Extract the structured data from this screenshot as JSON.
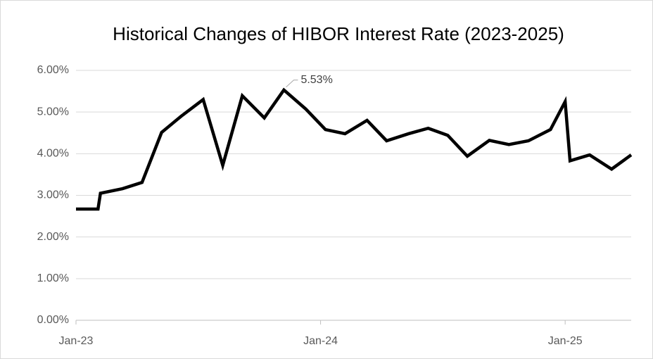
{
  "chart_data": {
    "type": "line",
    "title": "Historical Changes of HIBOR Interest Rate (2023-2025)",
    "x": [
      2023.0,
      2023.09,
      2023.1,
      2023.19,
      2023.27,
      2023.35,
      2023.43,
      2023.52,
      2023.6,
      2023.68,
      2023.77,
      2023.85,
      2023.94,
      2024.02,
      2024.1,
      2024.19,
      2024.27,
      2024.36,
      2024.44,
      2024.52,
      2024.6,
      2024.69,
      2024.77,
      2024.85,
      2024.94,
      2025.0,
      2025.02,
      2025.1,
      2025.19,
      2025.27
    ],
    "series": [
      {
        "color": "#000000",
        "values": [
          2.67,
          2.67,
          3.05,
          3.16,
          3.31,
          4.51,
          4.9,
          5.3,
          3.72,
          5.39,
          4.86,
          5.53,
          5.07,
          4.58,
          4.48,
          4.8,
          4.31,
          4.48,
          4.61,
          4.44,
          3.94,
          4.32,
          4.22,
          4.31,
          4.58,
          5.25,
          3.83,
          3.97,
          3.63,
          3.97
        ],
        "value_labels": [
          null,
          null,
          null,
          null,
          null,
          null,
          null,
          null,
          null,
          null,
          null,
          "5.53%",
          null,
          null,
          null,
          null,
          null,
          null,
          null,
          null,
          null,
          null,
          null,
          null,
          null,
          null,
          null,
          null,
          null,
          null
        ]
      }
    ],
    "xlim": [
      2023.0,
      2025.27
    ],
    "xticks": [
      {
        "value": 2023,
        "label": "Jan-23"
      },
      {
        "value": 2024,
        "label": "Jan-24"
      },
      {
        "value": 2025,
        "label": "Jan-25"
      }
    ],
    "ylim": [
      0,
      6
    ],
    "yticks": [
      {
        "value": 0,
        "label": "0.00%"
      },
      {
        "value": 1,
        "label": "1.00%"
      },
      {
        "value": 2,
        "label": "2.00%"
      },
      {
        "value": 3,
        "label": "3.00%"
      },
      {
        "value": 4,
        "label": "4.00%"
      },
      {
        "value": 5,
        "label": "5.00%"
      },
      {
        "value": 6,
        "label": "6.00%"
      }
    ],
    "grid": true
  }
}
